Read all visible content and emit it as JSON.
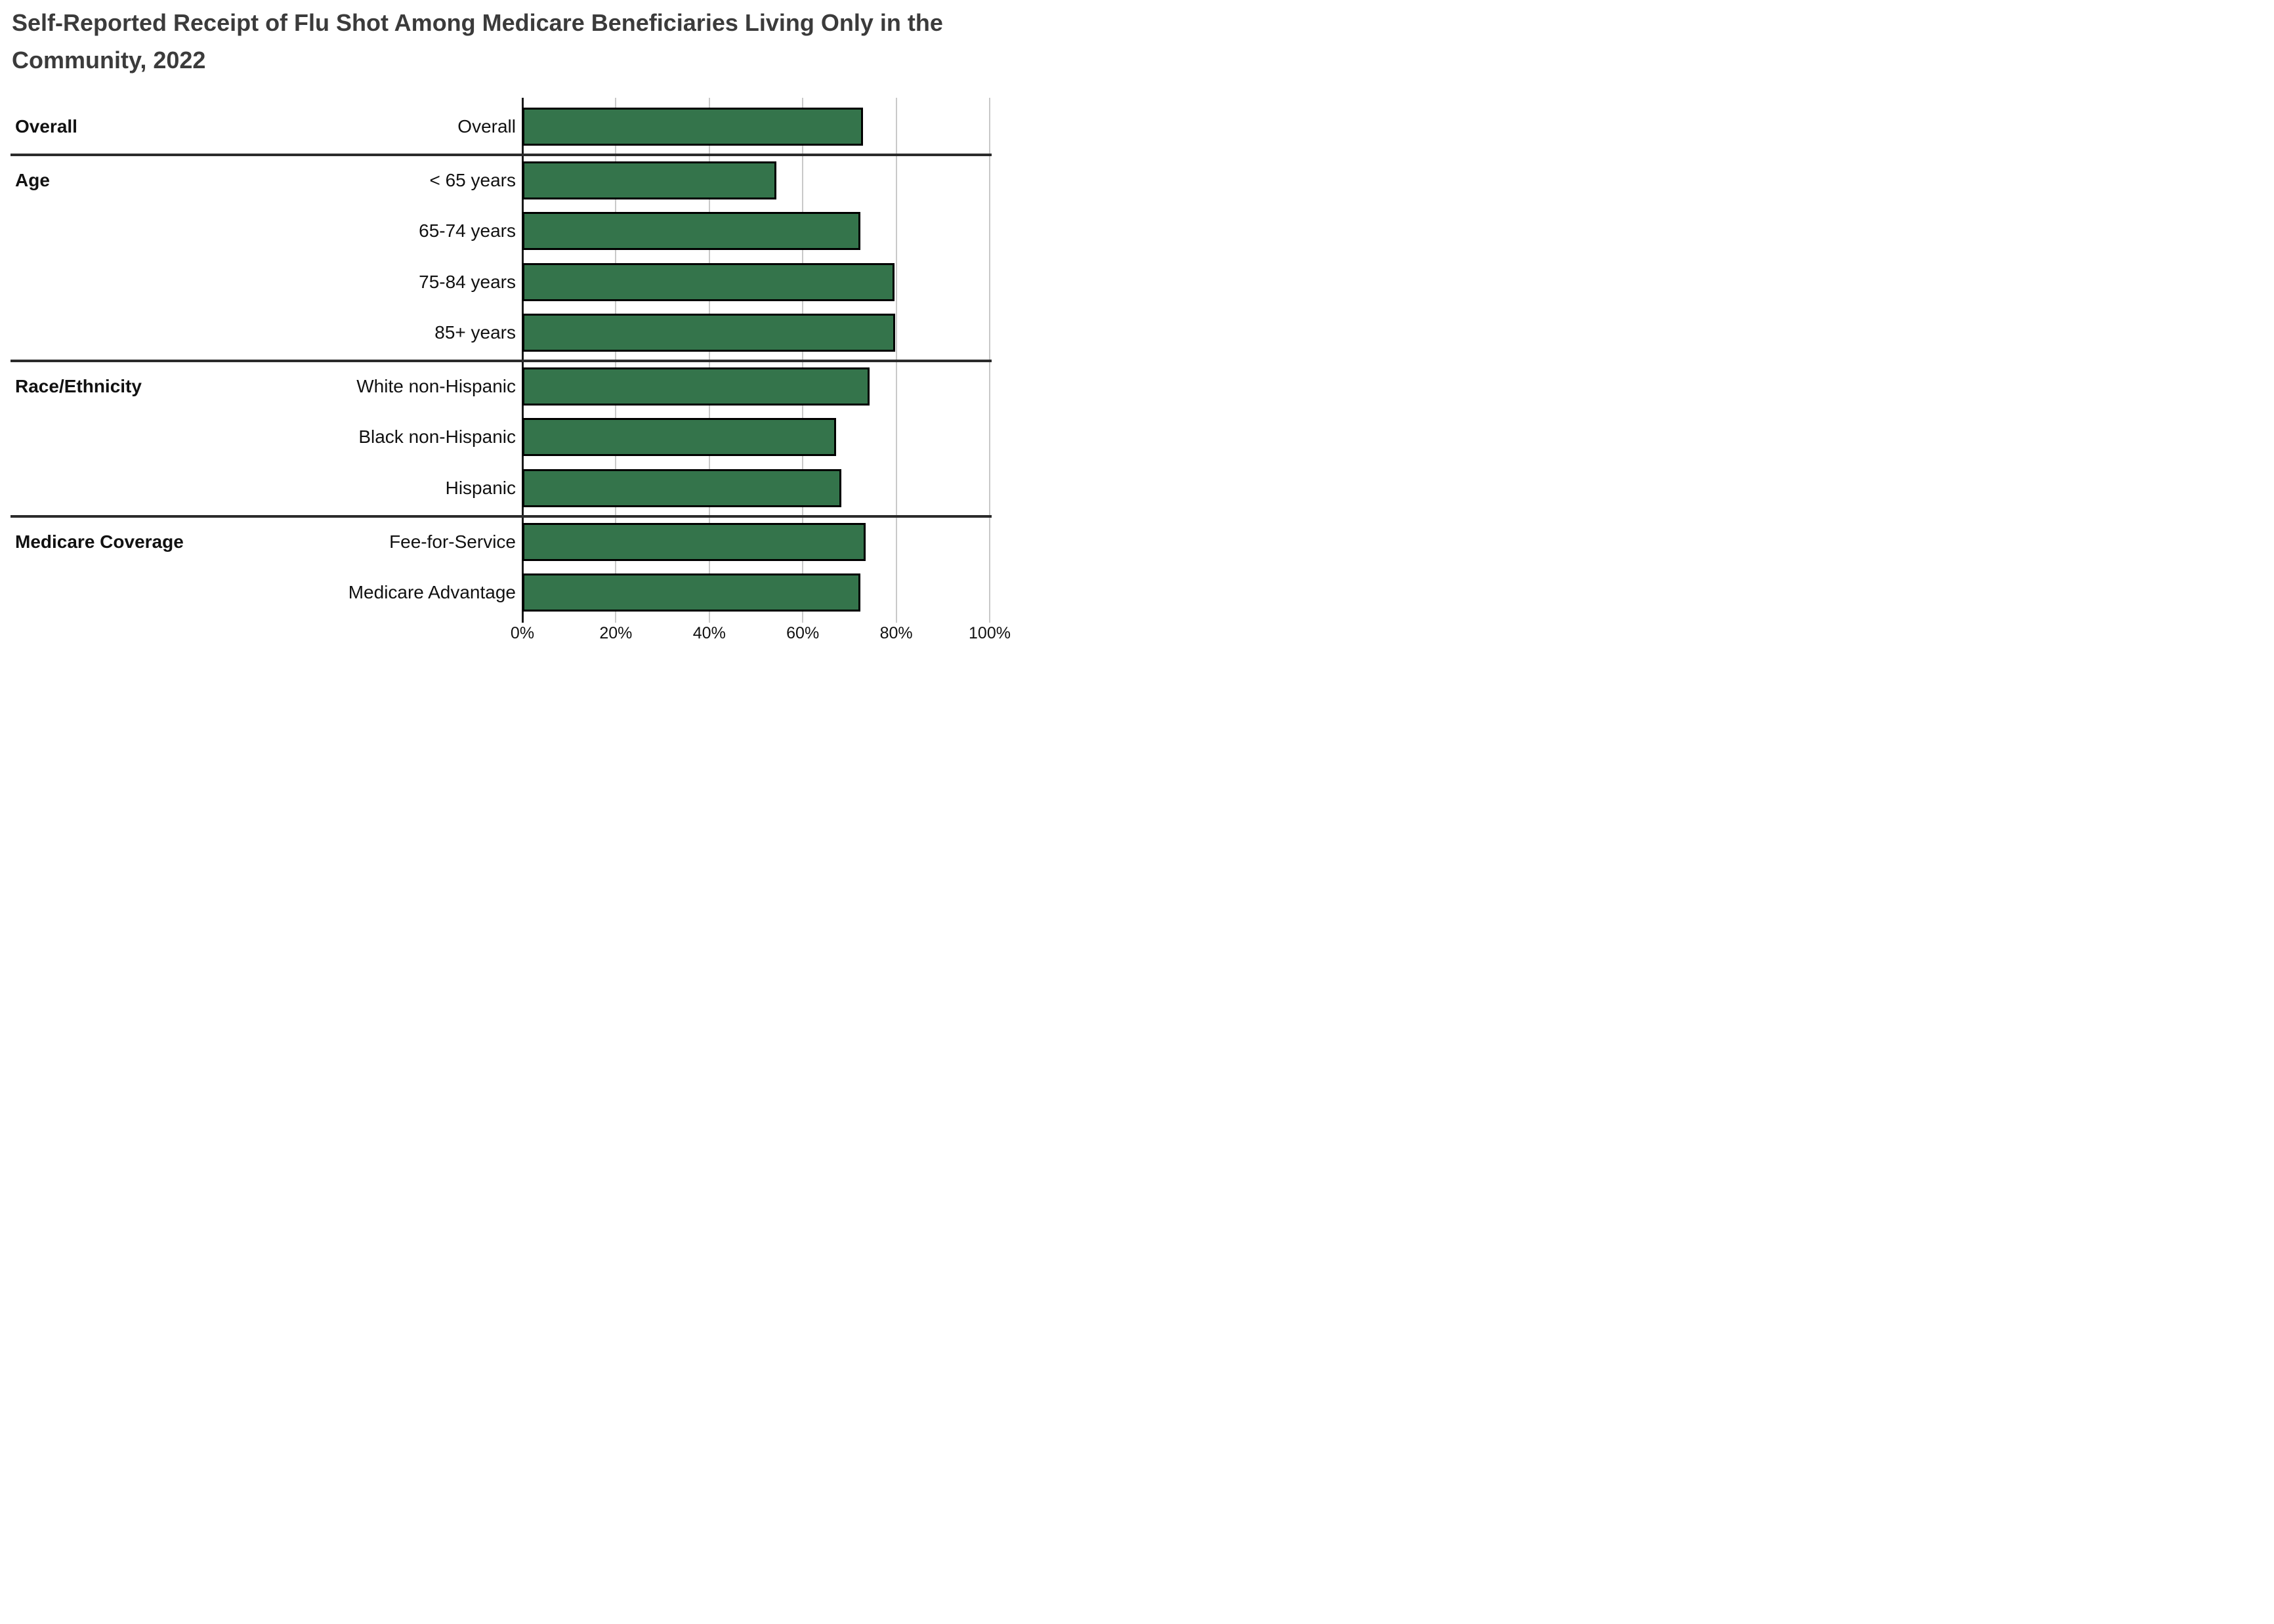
{
  "title_lines": [
    "Self-Reported Receipt of Flu Shot Among Medicare Beneficiaries Living Only in the",
    "Community, 2022"
  ],
  "chart_data": {
    "type": "bar",
    "orientation": "horizontal",
    "title": "Self-Reported Receipt of Flu Shot Among Medicare Beneficiaries Living Only in the Community, 2022",
    "unit": "%",
    "xlabel": "",
    "ylabel": "",
    "x_range": [
      0,
      100
    ],
    "x_tick_labels": [
      "0%",
      "20%",
      "40%",
      "60%",
      "80%",
      "100%"
    ],
    "x_tick_values": [
      0,
      20,
      40,
      60,
      80,
      100
    ],
    "grid": "vertical gridlines on, section divider rules between groups",
    "legend": "none",
    "sections": [
      {
        "label": "Overall",
        "rows": [
          {
            "label": "Overall",
            "value": 72.9
          }
        ]
      },
      {
        "label": "Age",
        "rows": [
          {
            "label": "< 65 years",
            "value": 54.4
          },
          {
            "label": "65-74 years",
            "value": 72.4
          },
          {
            "label": "75-84 years",
            "value": 79.6
          },
          {
            "label": "85+ years",
            "value": 79.8
          }
        ]
      },
      {
        "label": "Race/Ethnicity",
        "rows": [
          {
            "label": "White non-Hispanic",
            "value": 74.3
          },
          {
            "label": "Black non-Hispanic",
            "value": 67.1
          },
          {
            "label": "Hispanic",
            "value": 68.2
          }
        ]
      },
      {
        "label": "Medicare Coverage",
        "rows": [
          {
            "label": "Fee-for-Service",
            "value": 73.4
          },
          {
            "label": "Medicare Advantage",
            "value": 72.4
          }
        ]
      }
    ],
    "colors": {
      "bar_fill": "#34744B",
      "bar_border": "#000000",
      "gridline": "#c9c9c9",
      "axis_line": "#1a1a1a",
      "section_divider": "#2b2b2b",
      "title_text": "#3b3b3b",
      "label_text": "#111111",
      "background": "#ffffff"
    }
  }
}
